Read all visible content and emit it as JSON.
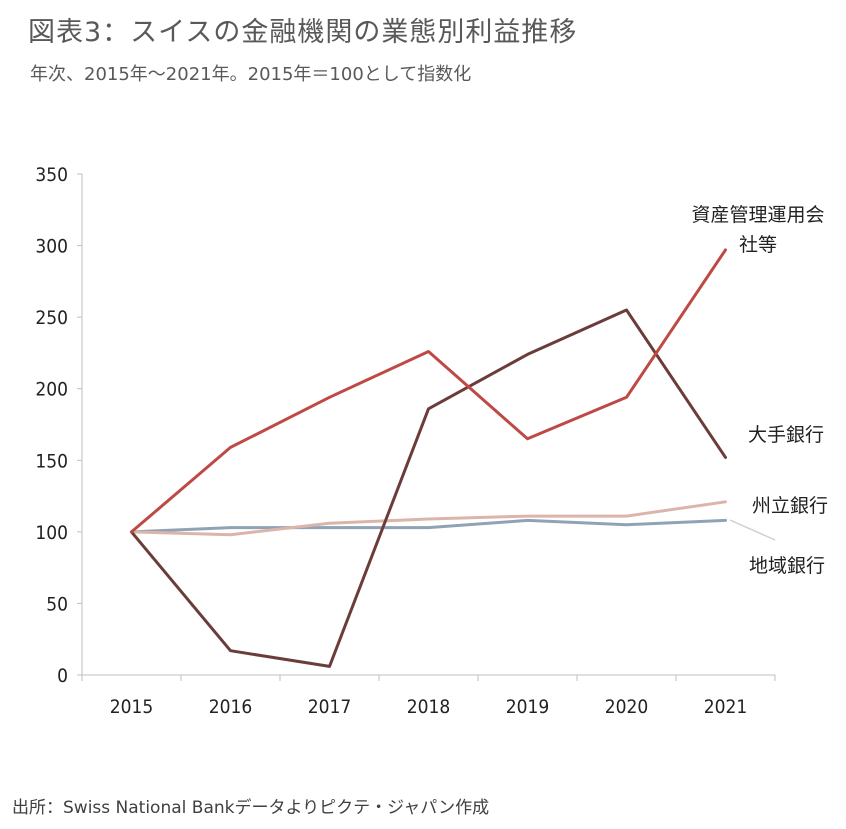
{
  "header": {
    "title": "図表3：スイスの金融機関の業態別利益推移",
    "subtitle": "年次、2015年～2021年。2015年＝100として指数化"
  },
  "footer": {
    "source": "出所：Swiss National Bankデータよりピクテ・ジャパン作成"
  },
  "chart_data": {
    "type": "line",
    "title": "図表3：スイスの金融機関の業態別利益推移",
    "subtitle": "年次、2015年～2021年。2015年＝100として指数化",
    "categories": [
      "2015",
      "2016",
      "2017",
      "2018",
      "2019",
      "2020",
      "2021"
    ],
    "y_ticks": [
      "0",
      "50",
      "100",
      "150",
      "200",
      "250",
      "300",
      "350"
    ],
    "ylim": [
      0,
      350
    ],
    "grid": false,
    "series": [
      {
        "name": "地域銀行",
        "label_lines": [
          "地域銀行"
        ],
        "color": "#8fa3b5",
        "values": [
          100,
          103,
          103,
          103,
          108,
          105,
          108
        ]
      },
      {
        "name": "州立銀行",
        "label_lines": [
          "州立銀行"
        ],
        "color": "#dcb5aa",
        "values": [
          100,
          98,
          106,
          109,
          111,
          111,
          121
        ]
      },
      {
        "name": "大手銀行",
        "label_lines": [
          "大手銀行"
        ],
        "color": "#6b3d3a",
        "values": [
          100,
          17,
          6,
          186,
          224,
          255,
          152
        ]
      },
      {
        "name": "資産管理運用会社等",
        "label_lines": [
          "資産管理運用会",
          "社等"
        ],
        "color": "#bf4944",
        "values": [
          100,
          159,
          194,
          226,
          165,
          194,
          297
        ]
      }
    ]
  }
}
